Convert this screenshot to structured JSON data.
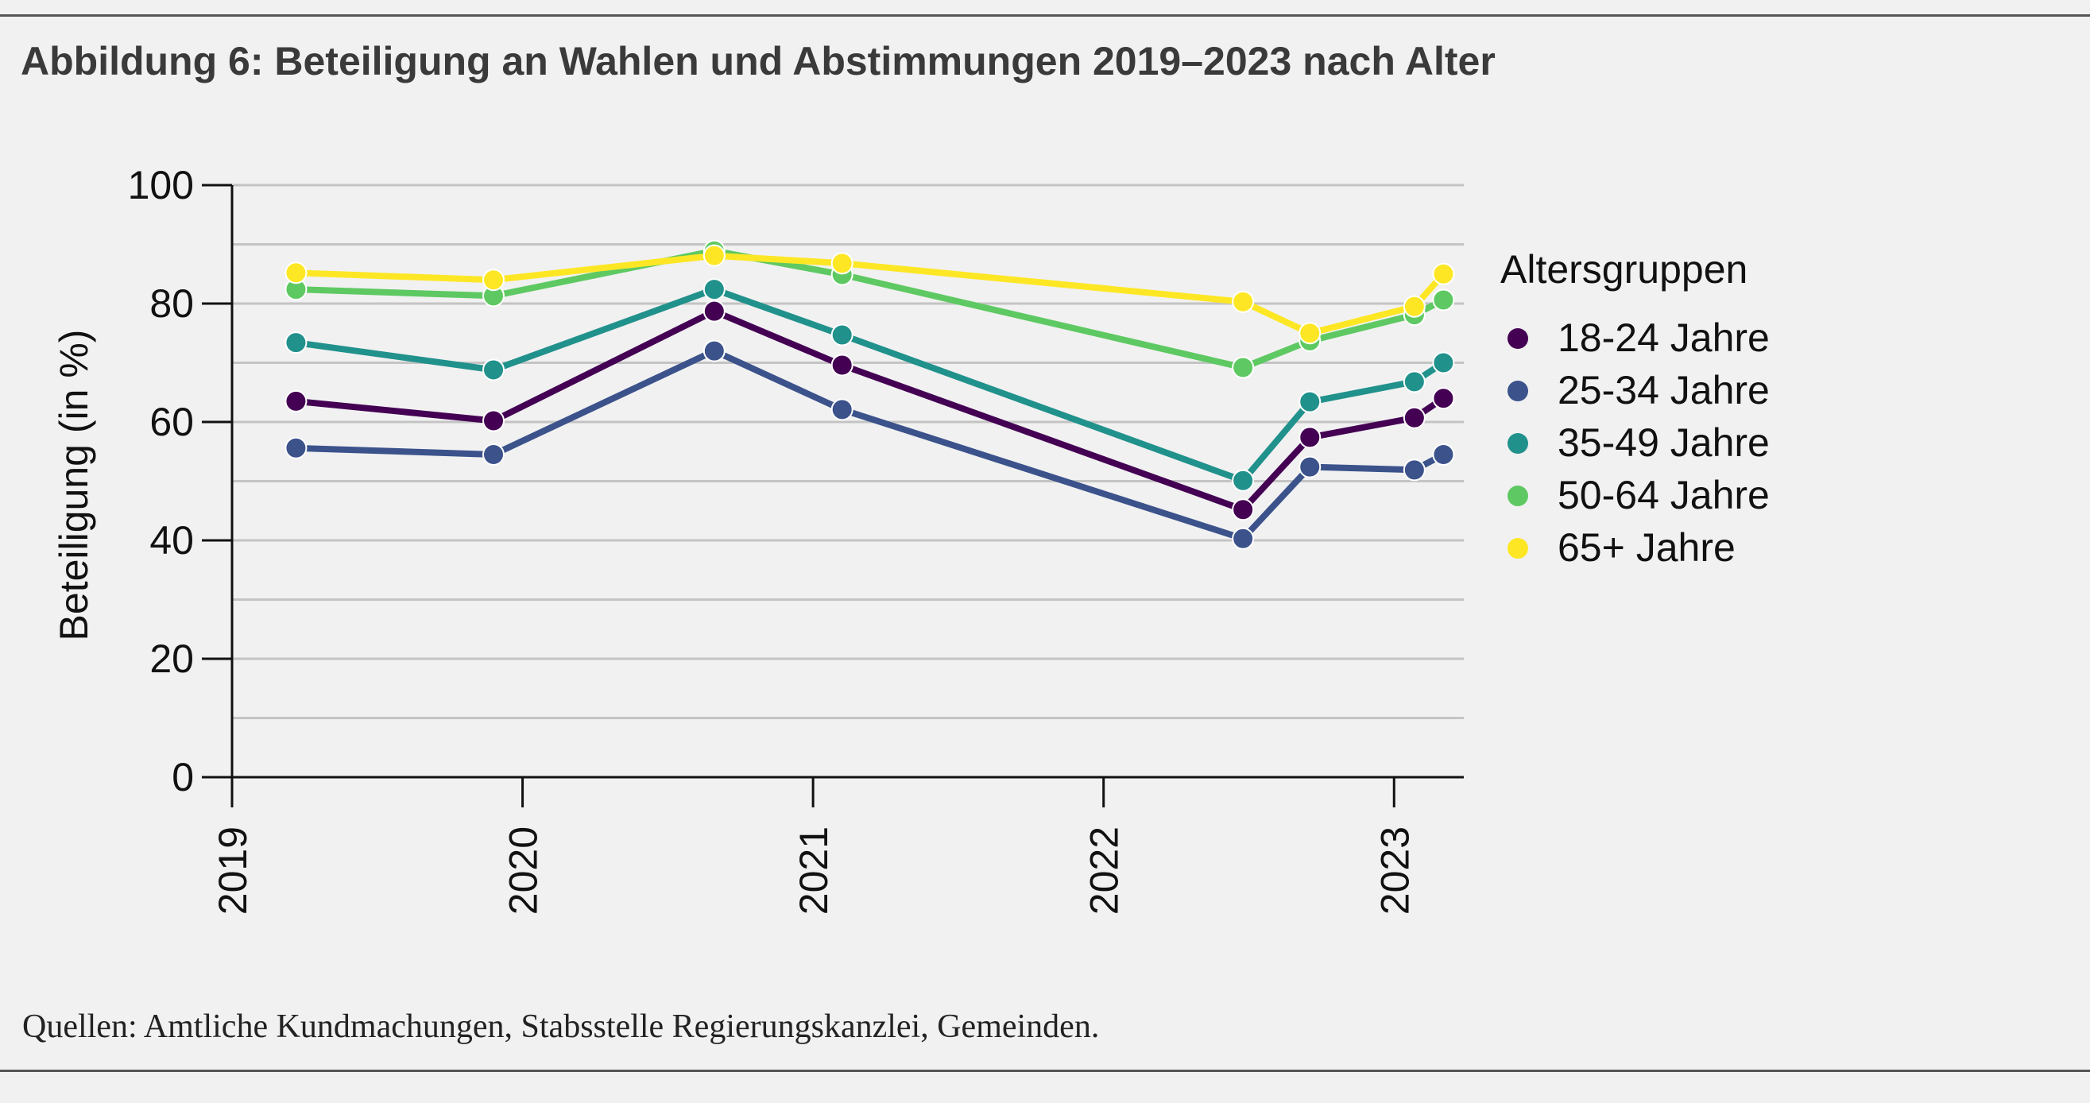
{
  "figure": {
    "title": "Abbildung 6: Beteiligung an Wahlen und Abstimmungen 2019–2023 nach Alter",
    "source": "Quellen: Amtliche Kundmachungen, Stabsstelle Regierungskanzlei, Gemeinden."
  },
  "chart_data": {
    "type": "line",
    "title": "Abbildung 6: Beteiligung an Wahlen und Abstimmungen 2019–2023 nach Alter",
    "xlabel": "",
    "ylabel": "Beteiligung (in %)",
    "xlim": [
      2019,
      2023.24
    ],
    "ylim": [
      0,
      100
    ],
    "yticks": [
      0,
      20,
      40,
      60,
      80,
      100
    ],
    "ytick_labels": [
      "0",
      "20",
      "40",
      "60",
      "80",
      "100"
    ],
    "xticks": [
      2019,
      2020,
      2021,
      2022,
      2023
    ],
    "xtick_labels": [
      "2019",
      "2020",
      "2021",
      "2022",
      "2023"
    ],
    "grid": true,
    "legend_title": "Altersgruppen",
    "legend_position": "right",
    "x": [
      2019.22,
      2019.9,
      2020.66,
      2021.1,
      2022.48,
      2022.71,
      2023.07,
      2023.17
    ],
    "series": [
      {
        "name": "18-24 Jahre",
        "color": "#440154",
        "values": [
          63.5,
          60.2,
          78.7,
          69.6,
          45.2,
          57.4,
          60.7,
          64.0
        ]
      },
      {
        "name": "25-34 Jahre",
        "color": "#3b528b",
        "values": [
          55.6,
          54.5,
          72.0,
          62.1,
          40.3,
          52.4,
          51.9,
          54.5
        ]
      },
      {
        "name": "35-49 Jahre",
        "color": "#21918c",
        "values": [
          73.4,
          68.8,
          82.4,
          74.7,
          50.1,
          63.4,
          66.8,
          70.0
        ]
      },
      {
        "name": "50-64 Jahre",
        "color": "#5ec962",
        "values": [
          82.4,
          81.3,
          88.9,
          84.9,
          69.2,
          73.7,
          78.1,
          80.6
        ]
      },
      {
        "name": "65+ Jahre",
        "color": "#fde725",
        "values": [
          85.2,
          84.0,
          88.1,
          86.8,
          80.3,
          75.0,
          79.5,
          85.0
        ]
      }
    ]
  }
}
